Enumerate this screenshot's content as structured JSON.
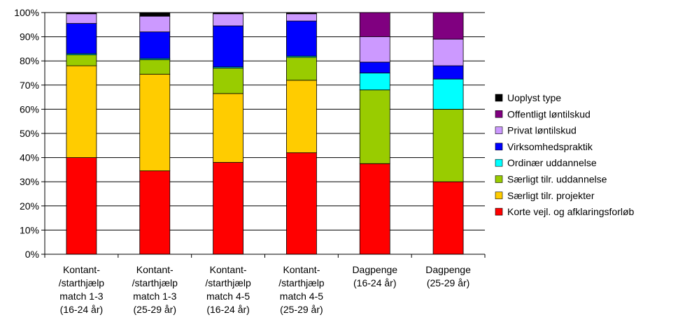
{
  "chart_data": {
    "type": "bar",
    "stacked": true,
    "percent": true,
    "categories": [
      [
        "Kontant-",
        "/starthjælp",
        "match 1-3",
        "(16-24 år)"
      ],
      [
        "Kontant-",
        "/starthjælp",
        "match 1-3",
        "(25-29 år)"
      ],
      [
        "Kontant-",
        "/starthjælp",
        "match 4-5",
        "(16-24 år)"
      ],
      [
        "Kontant-",
        "/starthjælp",
        "match 4-5",
        "(25-29 år)"
      ],
      [
        "Dagpenge",
        "(16-24 år)"
      ],
      [
        "Dagpenge",
        "(25-29 år)"
      ]
    ],
    "yticks": [
      "0%",
      "10%",
      "20%",
      "30%",
      "40%",
      "50%",
      "60%",
      "70%",
      "80%",
      "90%",
      "100%"
    ],
    "ylim": [
      0,
      100
    ],
    "grid": true,
    "legend_position": "right",
    "series": [
      {
        "name": "Korte vejl. og afklaringsforløb",
        "color": "#ff0000",
        "values": [
          40,
          34.5,
          38,
          42,
          37.5,
          30
        ]
      },
      {
        "name": "Særligt tilr. projekter",
        "color": "#ffcc00",
        "values": [
          38,
          40,
          28.5,
          30,
          0,
          0
        ]
      },
      {
        "name": "Særligt tilr. uddannelse",
        "color": "#99cc00",
        "values": [
          4.5,
          6,
          10.5,
          9.5,
          30.5,
          30
        ]
      },
      {
        "name": "Ordinær uddannelse",
        "color": "#00ffff",
        "values": [
          0.5,
          0.5,
          0.5,
          0.5,
          7,
          12.5
        ]
      },
      {
        "name": "Virksomhedspraktik",
        "color": "#0000ff",
        "values": [
          12.5,
          11,
          17,
          14.5,
          4.5,
          5.5
        ]
      },
      {
        "name": "Privat løntilskud",
        "color": "#cc99ff",
        "values": [
          4,
          6.5,
          5,
          3,
          10.5,
          11
        ]
      },
      {
        "name": "Offentligt løntilskud",
        "color": "#800080",
        "values": [
          0,
          0,
          0,
          0,
          10,
          11
        ]
      },
      {
        "name": "Uoplyst type",
        "color": "#000000",
        "values": [
          0.5,
          1.5,
          0.5,
          0.5,
          0,
          0
        ]
      }
    ],
    "legend_order": [
      7,
      6,
      5,
      4,
      3,
      2,
      1,
      0
    ]
  }
}
